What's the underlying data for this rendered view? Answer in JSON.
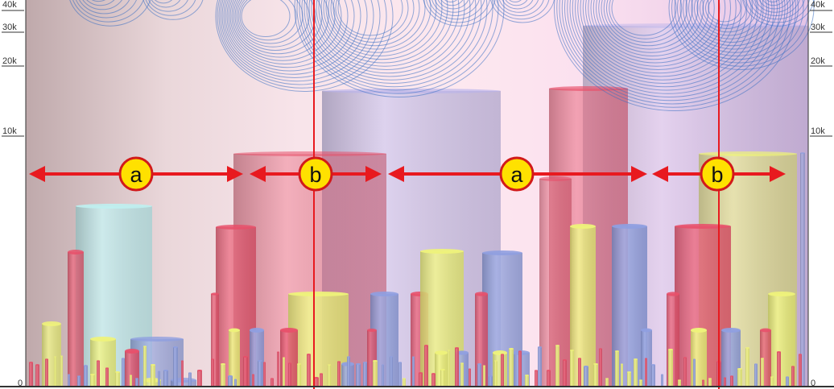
{
  "axis": {
    "left_ticks": [
      "40k",
      "30k",
      "20k",
      "10k",
      "0"
    ],
    "right_ticks": [
      "40k",
      "30k",
      "20k",
      "10k",
      "0"
    ]
  },
  "annotations": [
    {
      "label": "a"
    },
    {
      "label": "b"
    },
    {
      "label": "a"
    },
    {
      "label": "b"
    }
  ],
  "colors": {
    "arc": "#3a6fc2",
    "marker": "#e8191f",
    "badge_fill": "#ffe100",
    "badge_stroke": "#d11a1a",
    "bar_red": "#e8506a",
    "bar_yellow": "#eef27a",
    "bar_blue": "#8f9fe0",
    "bar_cyan": "#bfeff0",
    "bar_purple": "#b9b2ea"
  }
}
